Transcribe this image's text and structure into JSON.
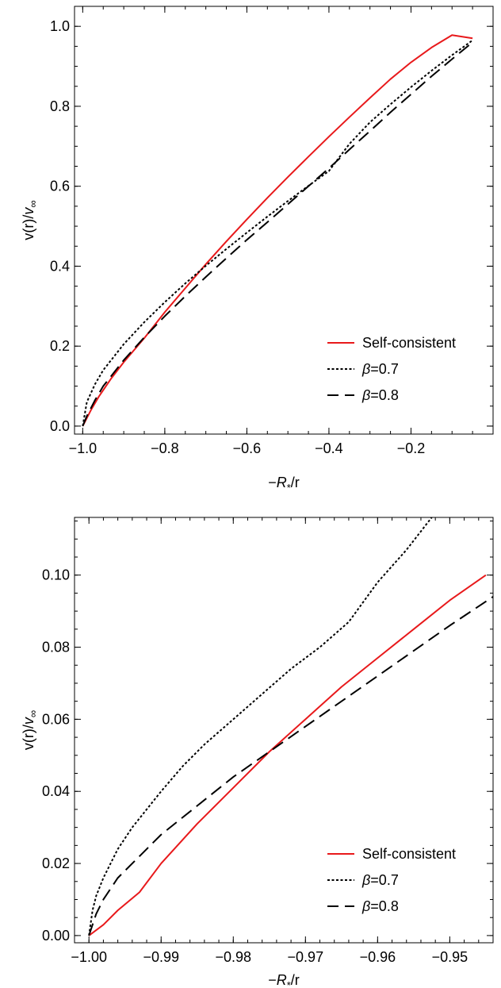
{
  "chart_data": [
    {
      "type": "line",
      "xlabel": "−R*/r",
      "ylabel": "v(r)/v∞",
      "xlim": [
        -1.02,
        0.0
      ],
      "ylim": [
        -0.02,
        1.05
      ],
      "xticks": [
        -1.0,
        -0.8,
        -0.6,
        -0.4,
        -0.2
      ],
      "xtick_labels": [
        "−1.0",
        "−0.8",
        "−0.6",
        "−0.4",
        "−0.2"
      ],
      "yticks": [
        0.0,
        0.2,
        0.4,
        0.6,
        0.8,
        1.0
      ],
      "ytick_labels": [
        "0.0",
        "0.2",
        "0.4",
        "0.6",
        "0.8",
        "1.0"
      ],
      "minor_x_step": 0.05,
      "minor_y_step": 0.05,
      "grid": false,
      "legend": "bottom-right",
      "series": [
        {
          "name": "Self-consistent",
          "color": "#e8191b",
          "style": "solid",
          "x": [
            -1.0,
            -0.995,
            -0.98,
            -0.96,
            -0.93,
            -0.9,
            -0.85,
            -0.8,
            -0.75,
            -0.7,
            -0.65,
            -0.6,
            -0.55,
            -0.5,
            -0.45,
            -0.4,
            -0.35,
            -0.3,
            -0.25,
            -0.2,
            -0.15,
            -0.1,
            -0.05
          ],
          "y": [
            0.0,
            0.01,
            0.04,
            0.075,
            0.12,
            0.16,
            0.22,
            0.285,
            0.345,
            0.405,
            0.462,
            0.517,
            0.571,
            0.623,
            0.674,
            0.724,
            0.773,
            0.821,
            0.868,
            0.91,
            0.947,
            0.978,
            0.97
          ]
        },
        {
          "name": "β=0.7",
          "color": "#000000",
          "style": "dotted",
          "x": [
            -1.0,
            -0.99,
            -0.97,
            -0.95,
            -0.9,
            -0.85,
            -0.8,
            -0.75,
            -0.7,
            -0.65,
            -0.6,
            -0.55,
            -0.5,
            -0.45,
            -0.4,
            -0.35,
            -0.3,
            -0.25,
            -0.2,
            -0.15,
            -0.1,
            -0.05
          ],
          "y": [
            0.0,
            0.06,
            0.105,
            0.14,
            0.205,
            0.26,
            0.31,
            0.357,
            0.401,
            0.443,
            0.484,
            0.524,
            0.563,
            0.601,
            0.638,
            0.706,
            0.76,
            0.805,
            0.848,
            0.889,
            0.928,
            0.965
          ]
        },
        {
          "name": "β=0.8",
          "color": "#000000",
          "style": "dashed",
          "x": [
            -1.0,
            -0.99,
            -0.97,
            -0.95,
            -0.9,
            -0.85,
            -0.8,
            -0.75,
            -0.7,
            -0.65,
            -0.6,
            -0.55,
            -0.5,
            -0.45,
            -0.4,
            -0.35,
            -0.3,
            -0.25,
            -0.2,
            -0.15,
            -0.1,
            -0.05
          ],
          "y": [
            0.0,
            0.025,
            0.065,
            0.1,
            0.165,
            0.222,
            0.275,
            0.325,
            0.373,
            0.42,
            0.466,
            0.51,
            0.555,
            0.6,
            0.645,
            0.692,
            0.738,
            0.785,
            0.83,
            0.875,
            0.918,
            0.96
          ]
        }
      ]
    },
    {
      "type": "line",
      "xlabel": "−R*/r",
      "ylabel": "v(r)/v∞",
      "xlim": [
        -1.002,
        -0.944
      ],
      "ylim": [
        -0.002,
        0.116
      ],
      "xticks": [
        -1.0,
        -0.99,
        -0.98,
        -0.97,
        -0.96,
        -0.95
      ],
      "xtick_labels": [
        "−1.00",
        "−0.99",
        "−0.98",
        "−0.97",
        "−0.96",
        "−0.95"
      ],
      "yticks": [
        0.0,
        0.02,
        0.04,
        0.06,
        0.08,
        0.1
      ],
      "ytick_labels": [
        "0.00",
        "0.02",
        "0.04",
        "0.06",
        "0.08",
        "0.10"
      ],
      "minor_x_step": 0.002,
      "minor_y_step": 0.005,
      "grid": false,
      "legend": "bottom-right",
      "series": [
        {
          "name": "Self-consistent",
          "color": "#e8191b",
          "style": "solid",
          "x": [
            -1.0,
            -0.998,
            -0.996,
            -0.993,
            -0.99,
            -0.985,
            -0.98,
            -0.975,
            -0.97,
            -0.965,
            -0.96,
            -0.955,
            -0.95,
            -0.945
          ],
          "y": [
            0.0,
            0.003,
            0.007,
            0.012,
            0.02,
            0.031,
            0.041,
            0.051,
            0.06,
            0.069,
            0.077,
            0.085,
            0.093,
            0.1
          ]
        },
        {
          "name": "β=0.7",
          "color": "#000000",
          "style": "dotted",
          "x": [
            -1.0,
            -0.9995,
            -0.999,
            -0.998,
            -0.996,
            -0.994,
            -0.992,
            -0.99,
            -0.987,
            -0.984,
            -0.98,
            -0.976,
            -0.972,
            -0.968,
            -0.964,
            -0.96,
            -0.956,
            -0.9525
          ],
          "y": [
            0.0,
            0.007,
            0.011,
            0.016,
            0.024,
            0.03,
            0.035,
            0.04,
            0.047,
            0.053,
            0.06,
            0.067,
            0.074,
            0.08,
            0.087,
            0.098,
            0.107,
            0.116
          ]
        },
        {
          "name": "β=0.8",
          "color": "#000000",
          "style": "dashed",
          "x": [
            -1.0,
            -0.999,
            -0.998,
            -0.996,
            -0.994,
            -0.992,
            -0.99,
            -0.985,
            -0.98,
            -0.975,
            -0.97,
            -0.965,
            -0.96,
            -0.955,
            -0.95,
            -0.944
          ],
          "y": [
            0.0,
            0.006,
            0.01,
            0.016,
            0.02,
            0.024,
            0.028,
            0.036,
            0.044,
            0.051,
            0.058,
            0.065,
            0.072,
            0.079,
            0.086,
            0.094
          ]
        }
      ]
    }
  ]
}
